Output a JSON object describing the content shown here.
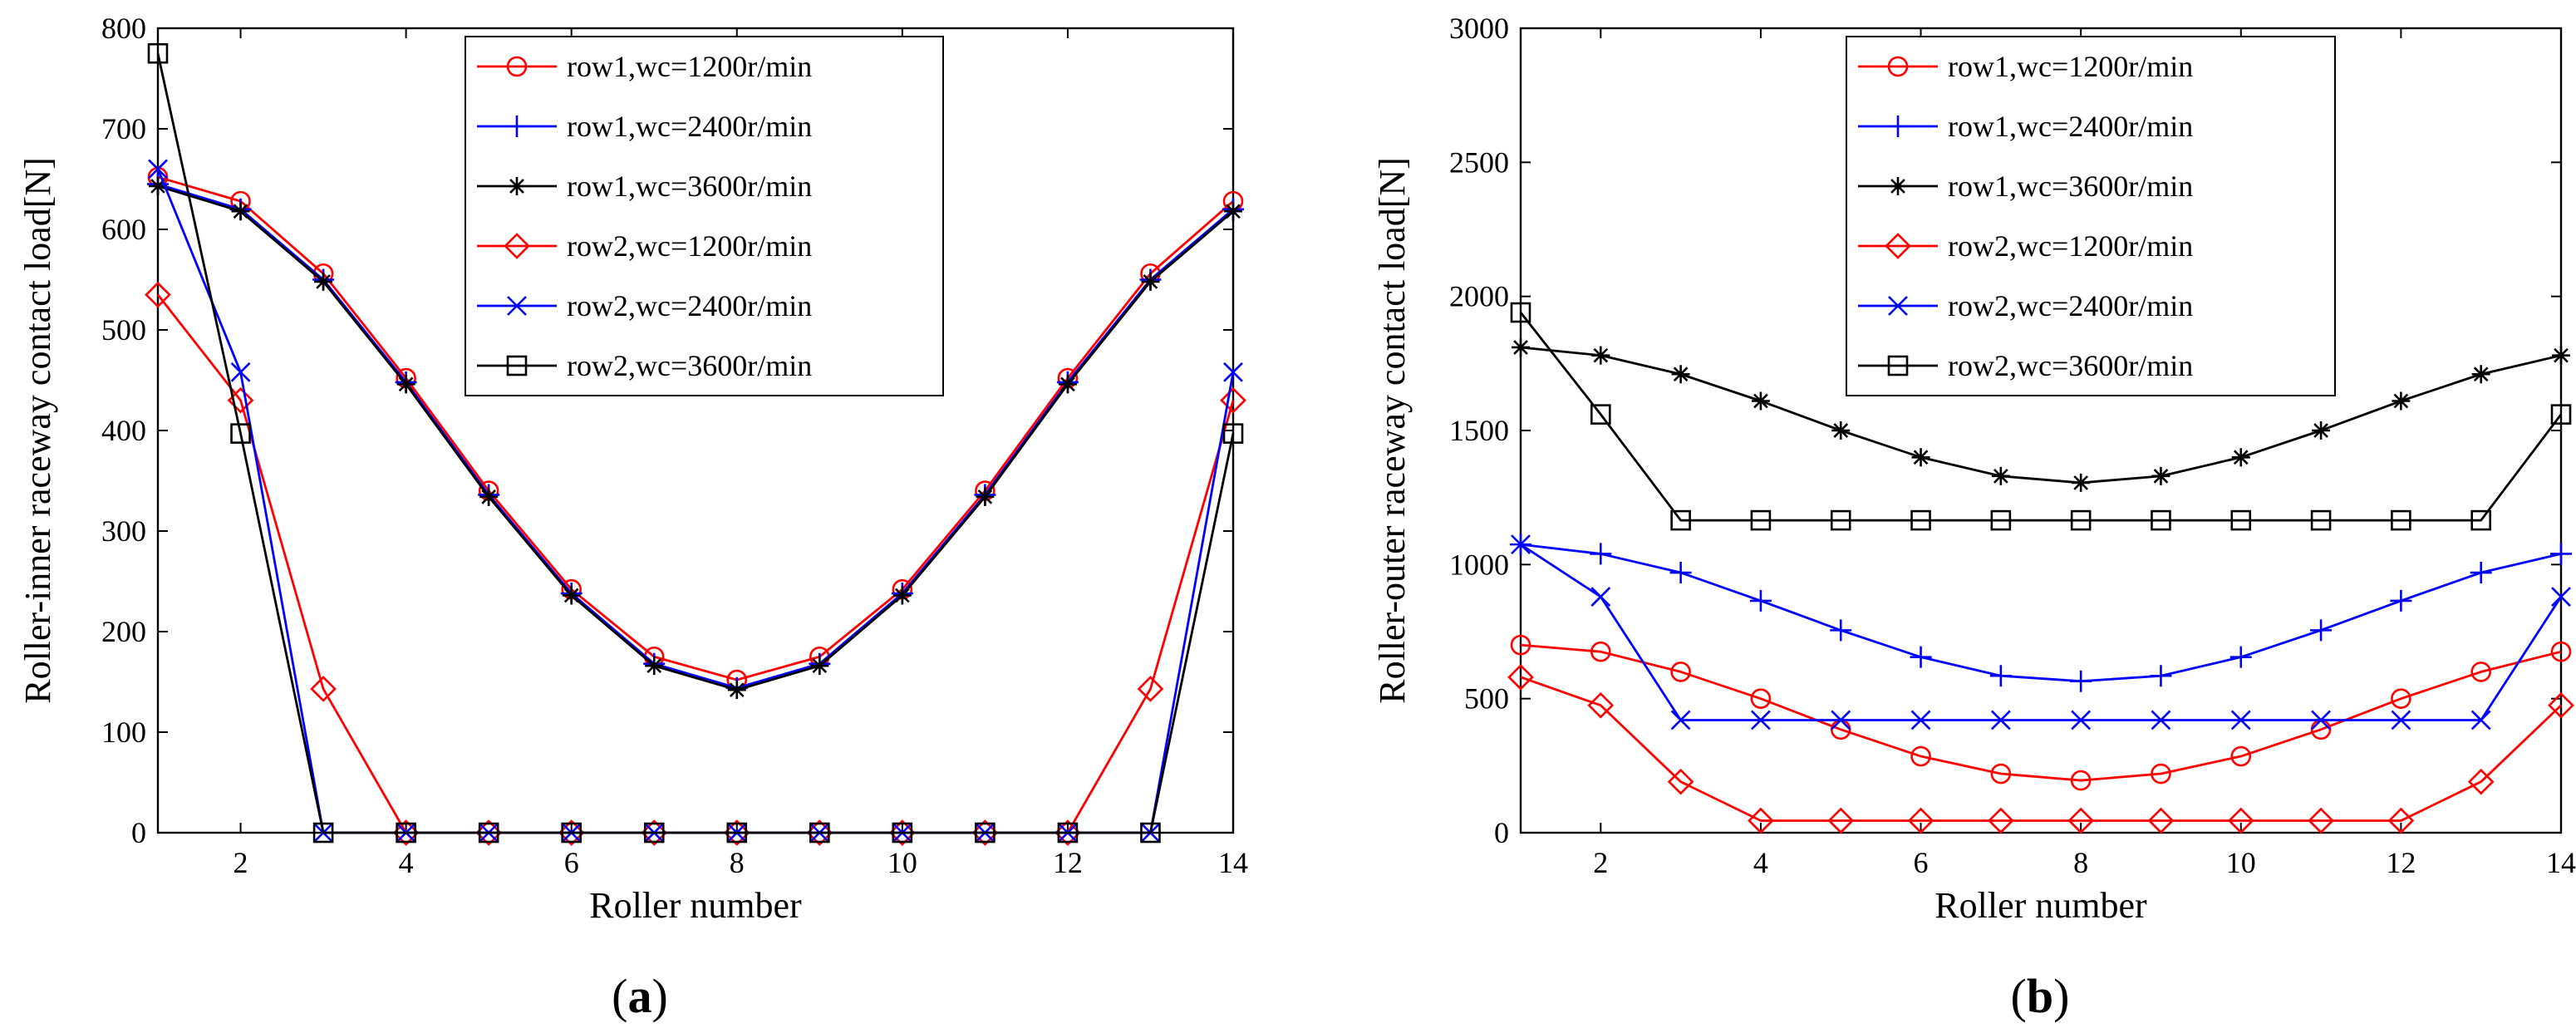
{
  "chart_data": [
    {
      "type": "line",
      "panel_label": "a",
      "title": "",
      "xlabel": "Roller number",
      "ylabel": "Roller-inner raceway contact load[N]",
      "xlim": [
        1,
        14
      ],
      "ylim": [
        0,
        800
      ],
      "xticks": [
        2,
        4,
        6,
        8,
        10,
        12,
        14
      ],
      "yticks": [
        0,
        100,
        200,
        300,
        400,
        500,
        600,
        700,
        800
      ],
      "grid": false,
      "legend_position": "top-right",
      "x": [
        1,
        2,
        3,
        4,
        5,
        6,
        7,
        8,
        9,
        10,
        11,
        12,
        13,
        14
      ],
      "series": [
        {
          "name": "row1,wc=1200r/min",
          "color": "#ff0000",
          "marker": "circle",
          "values": [
            652,
            628,
            556,
            452,
            340,
            242,
            175,
            152,
            175,
            242,
            340,
            452,
            556,
            628
          ]
        },
        {
          "name": "row1,wc=2400r/min",
          "color": "#0000ff",
          "marker": "plus",
          "values": [
            645,
            620,
            550,
            448,
            336,
            238,
            168,
            144,
            168,
            238,
            336,
            448,
            550,
            620
          ]
        },
        {
          "name": "row1,wc=3600r/min",
          "color": "#000000",
          "marker": "star",
          "values": [
            643,
            618,
            548,
            446,
            334,
            236,
            166,
            142,
            166,
            236,
            334,
            446,
            548,
            618
          ]
        },
        {
          "name": "row2,wc=1200r/min",
          "color": "#ff0000",
          "marker": "diamond",
          "values": [
            535,
            430,
            143,
            0,
            0,
            0,
            0,
            0,
            0,
            0,
            0,
            0,
            143,
            430
          ]
        },
        {
          "name": "row2,wc=2400r/min",
          "color": "#0000ff",
          "marker": "x",
          "values": [
            660,
            458,
            0,
            0,
            0,
            0,
            0,
            0,
            0,
            0,
            0,
            0,
            0,
            458
          ]
        },
        {
          "name": "row2,wc=3600r/min",
          "color": "#000000",
          "marker": "square",
          "values": [
            775,
            397,
            0,
            0,
            0,
            0,
            0,
            0,
            0,
            0,
            0,
            0,
            0,
            397
          ]
        }
      ]
    },
    {
      "type": "line",
      "panel_label": "b",
      "title": "",
      "xlabel": "Roller number",
      "ylabel": "Roller-outer raceway contact load[N]",
      "xlim": [
        1,
        14
      ],
      "ylim": [
        0,
        3000
      ],
      "xticks": [
        2,
        4,
        6,
        8,
        10,
        12,
        14
      ],
      "yticks": [
        0,
        500,
        1000,
        1500,
        2000,
        2500,
        3000
      ],
      "grid": false,
      "legend_position": "top-center",
      "x": [
        1,
        2,
        3,
        4,
        5,
        6,
        7,
        8,
        9,
        10,
        11,
        12,
        13,
        14
      ],
      "series": [
        {
          "name": "row1,wc=1200r/min",
          "color": "#ff0000",
          "marker": "circle",
          "values": [
            700,
            675,
            600,
            500,
            385,
            285,
            220,
            195,
            220,
            285,
            385,
            500,
            600,
            675
          ]
        },
        {
          "name": "row1,wc=2400r/min",
          "color": "#0000ff",
          "marker": "plus",
          "values": [
            1075,
            1040,
            970,
            865,
            755,
            655,
            585,
            565,
            585,
            655,
            755,
            865,
            970,
            1040
          ]
        },
        {
          "name": "row1,wc=3600r/min",
          "color": "#000000",
          "marker": "star",
          "values": [
            1810,
            1780,
            1710,
            1610,
            1500,
            1400,
            1330,
            1305,
            1330,
            1400,
            1500,
            1610,
            1710,
            1780
          ]
        },
        {
          "name": "row2,wc=1200r/min",
          "color": "#ff0000",
          "marker": "diamond",
          "values": [
            580,
            475,
            190,
            45,
            45,
            45,
            45,
            45,
            45,
            45,
            45,
            45,
            190,
            475
          ]
        },
        {
          "name": "row2,wc=2400r/min",
          "color": "#0000ff",
          "marker": "x",
          "values": [
            1075,
            880,
            420,
            420,
            420,
            420,
            420,
            420,
            420,
            420,
            420,
            420,
            420,
            880
          ]
        },
        {
          "name": "row2,wc=3600r/min",
          "color": "#000000",
          "marker": "square",
          "values": [
            1940,
            1560,
            1165,
            1165,
            1165,
            1165,
            1165,
            1165,
            1165,
            1165,
            1165,
            1165,
            1165,
            1560
          ]
        }
      ]
    }
  ]
}
